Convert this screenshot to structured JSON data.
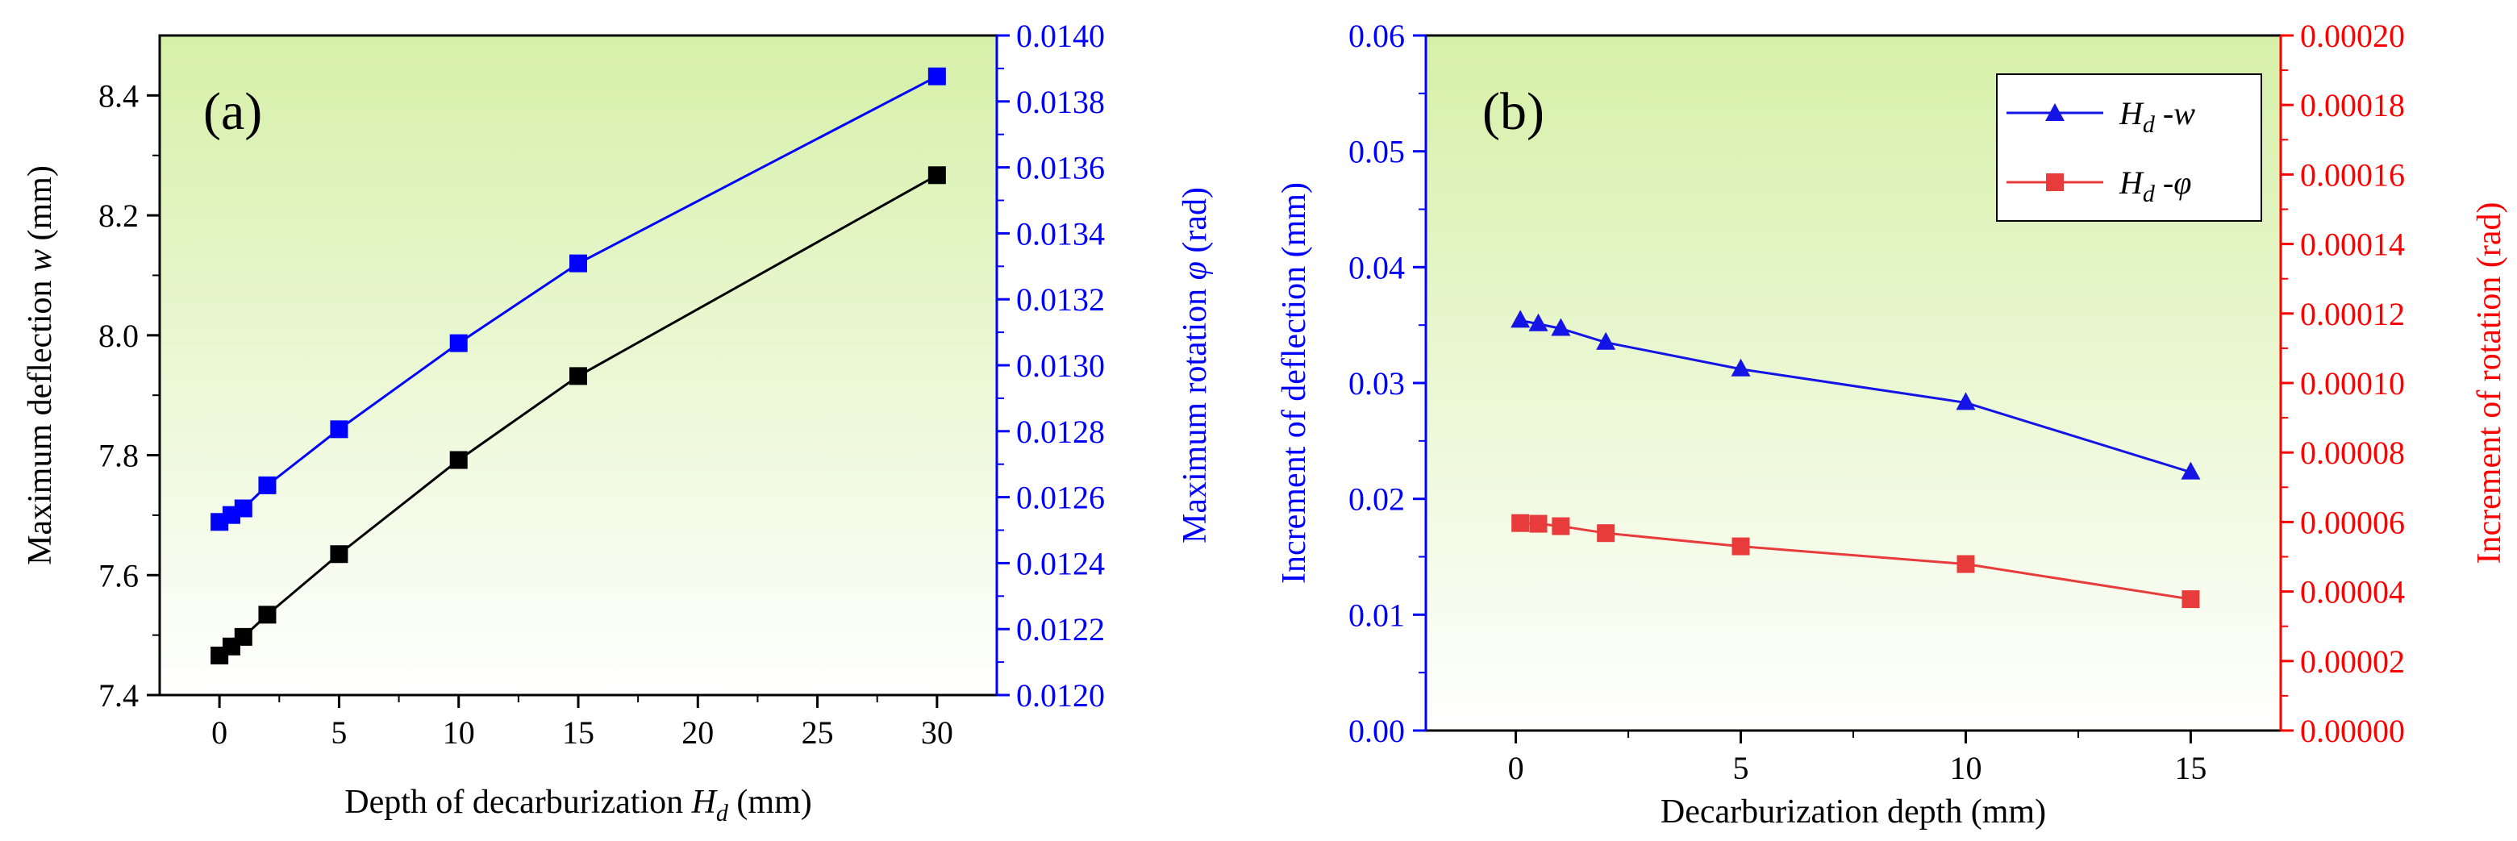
{
  "colors": {
    "black": "#000000",
    "blue": "#0000ff",
    "red": "#ff0000",
    "blue_series": "#1414e6",
    "red_series": "#e83c3c",
    "bg_top": "#d6f0a8",
    "bg_bottom": "#ffffff"
  },
  "chart_data": [
    {
      "type": "line",
      "panel_label": "(a)",
      "xlabel": "Depth of decarburization",
      "xlabel_symbol": "H",
      "xlabel_subscript": "d",
      "xlabel_unit": "(mm)",
      "ylabel_left_prefix": "Maximum deflection",
      "ylabel_left_symbol": "w",
      "ylabel_left_unit": "(mm)",
      "ylabel_right_prefix": "Maximum rotation",
      "ylabel_right_symbol": "φ",
      "ylabel_right_unit": "(rad)",
      "xlim": [
        -2.5,
        32.5
      ],
      "ylim_left": [
        7.4,
        8.5
      ],
      "ylim_right": [
        0.012,
        0.014
      ],
      "x_ticks": [
        "0",
        "5",
        "10",
        "15",
        "20",
        "25",
        "30"
      ],
      "y_left_ticks": [
        "7.4",
        "7.6",
        "7.8",
        "8.0",
        "8.2",
        "8.4"
      ],
      "y_right_ticks": [
        "0.0120",
        "0.0122",
        "0.0124",
        "0.0126",
        "0.0128",
        "0.0130",
        "0.0132",
        "0.0134",
        "0.0136",
        "0.0138",
        "0.0140"
      ],
      "series": [
        {
          "name": "Maximum deflection w",
          "axis": "left",
          "marker": "square",
          "color": "#000000",
          "x": [
            0,
            0.5,
            1,
            2,
            5,
            10,
            15,
            30
          ],
          "values": [
            7.466,
            7.481,
            7.497,
            7.534,
            7.635,
            7.792,
            7.932,
            8.267
          ]
        },
        {
          "name": "Maximum rotation φ",
          "axis": "right",
          "marker": "square",
          "color": "#0000ff",
          "x": [
            0,
            0.5,
            1,
            2,
            5,
            10,
            15,
            30
          ],
          "values": [
            0.012525,
            0.012546,
            0.012566,
            0.012636,
            0.012806,
            0.013067,
            0.013309,
            0.013876
          ]
        }
      ]
    },
    {
      "type": "line",
      "panel_label": "(b)",
      "xlabel": "Decarburization depth (mm)",
      "ylabel_left": "Increment of deflection (mm)",
      "ylabel_right": "Increment of rotation (rad)",
      "xlim": [
        -2,
        17
      ],
      "ylim_left": [
        0,
        0.06
      ],
      "ylim_right": [
        0,
        0.0002
      ],
      "x_ticks": [
        "0",
        "5",
        "10",
        "15"
      ],
      "y_left_ticks": [
        "0.00",
        "0.01",
        "0.02",
        "0.03",
        "0.04",
        "0.05",
        "0.06"
      ],
      "y_right_ticks": [
        "0.00000",
        "0.00002",
        "0.00004",
        "0.00006",
        "0.00008",
        "0.00010",
        "0.00012",
        "0.00014",
        "0.00016",
        "0.00018",
        "0.00020"
      ],
      "legend_position": "top-right",
      "legend": [
        {
          "symbol": "H",
          "subscript": "d",
          "suffix": " -w"
        },
        {
          "symbol": "H",
          "subscript": "d",
          "suffix": " -φ"
        }
      ],
      "series": [
        {
          "name": "Hd -w",
          "axis": "left",
          "marker": "triangle",
          "color": "#1414e6",
          "x": [
            0.1,
            0.5,
            1,
            2,
            5,
            10,
            15
          ],
          "values": [
            0.0354,
            0.0351,
            0.0347,
            0.0335,
            0.0312,
            0.0283,
            0.0223
          ]
        },
        {
          "name": "Hd -φ",
          "axis": "right",
          "marker": "square",
          "color": "#e83c3c",
          "x": [
            0.1,
            0.5,
            1,
            2,
            5,
            10,
            15
          ],
          "values": [
            5.97e-05,
            5.95e-05,
            5.88e-05,
            5.68e-05,
            5.3e-05,
            4.79e-05,
            3.78e-05
          ]
        }
      ]
    }
  ]
}
